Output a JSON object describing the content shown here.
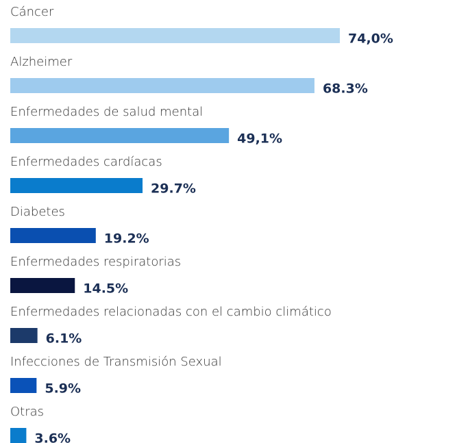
{
  "chart_data": {
    "type": "bar",
    "orientation": "horizontal",
    "categories": [
      "Cáncer",
      "Alzheimer",
      "Enfermedades de salud mental",
      "Enfermedades cardíacas",
      "Diabetes",
      "Enfermedades respiratorias",
      "Enfermedades relacionadas con el cambio climático",
      "Infecciones de Transmisión Sexual",
      "Otras"
    ],
    "values": [
      74.0,
      68.3,
      49.1,
      29.7,
      19.2,
      14.5,
      6.1,
      5.9,
      3.6
    ],
    "value_labels": [
      "74,0%",
      "68.3%",
      "49,1%",
      "29.7%",
      "19.2%",
      "14.5%",
      "6.1%",
      "5.9%",
      "3.6%"
    ],
    "colors": [
      "#b3d7f0",
      "#9ecbee",
      "#5aa5e0",
      "#0a7ccc",
      "#0a4fb0",
      "#0a1640",
      "#1c3a6a",
      "#0a52b8",
      "#0a7ccc"
    ]
  }
}
